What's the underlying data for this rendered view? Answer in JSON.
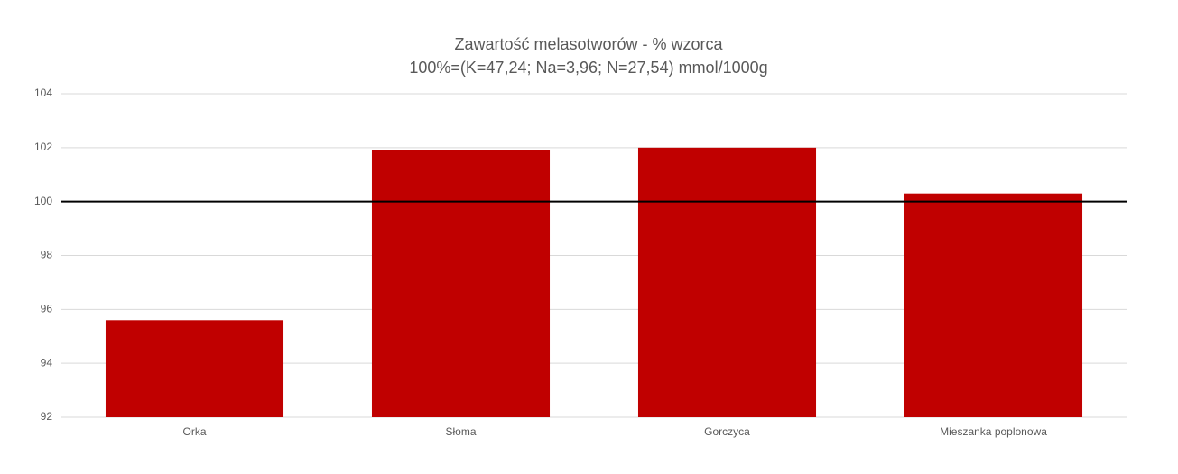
{
  "chart_data": {
    "type": "bar",
    "title": "Zawartość melasotworów - % wzorca",
    "subtitle": "100%=(K=47,24; Na=3,96; N=27,54) mmol/1000g",
    "categories": [
      "Orka",
      "Słoma",
      "Gorczyca",
      "Mieszanka poplonowa"
    ],
    "values": [
      95.6,
      101.9,
      102.0,
      100.3
    ],
    "color": "#c00000",
    "ylim": [
      92,
      104
    ],
    "yticks": [
      92,
      94,
      96,
      98,
      100,
      102,
      104
    ],
    "grid": true,
    "reference_line": 100,
    "reference_color": "#000000"
  }
}
